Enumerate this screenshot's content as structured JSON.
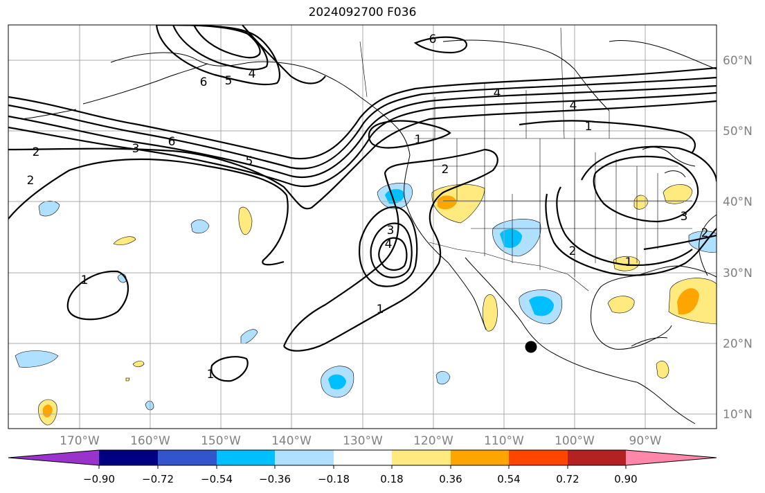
{
  "title": "2024092700 F036",
  "map": {
    "lon_range": [
      -180,
      -80
    ],
    "lat_range": [
      8,
      65
    ],
    "grid": true,
    "lon_ticks": [
      "170°W",
      "160°W",
      "150°W",
      "140°W",
      "130°W",
      "120°W",
      "110°W",
      "100°W",
      "90°W"
    ],
    "lat_ticks": [
      "60°N",
      "50°N",
      "40°N",
      "30°N",
      "20°N",
      "10°N"
    ],
    "marker": {
      "lon": -106,
      "lat": 19.5,
      "color": "#000000"
    }
  },
  "contours": {
    "color": "#000000",
    "labels": [
      "6",
      "5",
      "4",
      "6",
      "1",
      "4",
      "4",
      "1",
      "2",
      "3",
      "6",
      "5",
      "2",
      "2",
      "1",
      "3",
      "4",
      "1",
      "1",
      "2",
      "3",
      "2",
      "1"
    ]
  },
  "colorbar": {
    "colors": [
      "#9933cc",
      "#000080",
      "#3355cc",
      "#00bfff",
      "#b0e0ff",
      "#ffffff",
      "#ffea80",
      "#ffa500",
      "#ff4500",
      "#b22222",
      "#ff88aa"
    ],
    "tick_labels": [
      "−0.90",
      "−0.72",
      "−0.54",
      "−0.36",
      "−0.18",
      "0.18",
      "0.36",
      "0.54",
      "0.72",
      "0.90"
    ]
  }
}
